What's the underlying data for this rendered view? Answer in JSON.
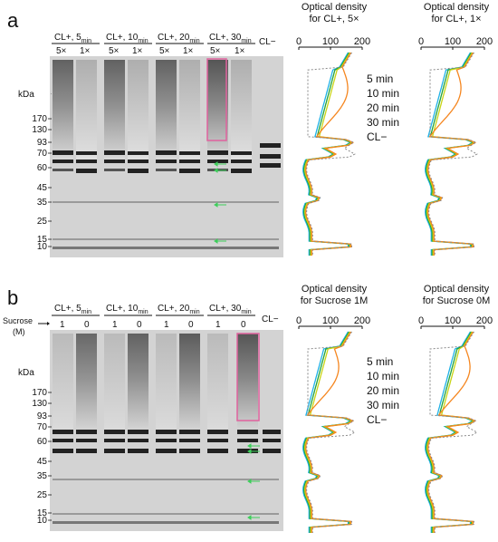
{
  "panels": [
    {
      "label": "a",
      "header_prefix": "",
      "header_prefix_sub": "",
      "groups": [
        {
          "main": "CL+, 5",
          "sub": "min",
          "lanes": [
            "5×",
            "1×"
          ]
        },
        {
          "main": "CL+, 10",
          "sub": "min",
          "lanes": [
            "5×",
            "1×"
          ]
        },
        {
          "main": "CL+, 20",
          "sub": "min",
          "lanes": [
            "5×",
            "1×"
          ]
        },
        {
          "main": "CL+, 30",
          "sub": "min",
          "lanes": [
            "5×",
            "1×"
          ]
        }
      ],
      "control_label": "CL−",
      "kda_label": "kDa",
      "markers": [
        "170",
        "130",
        "93",
        "70",
        "60",
        "45",
        "35",
        "25",
        "15",
        "10"
      ],
      "plots": [
        {
          "title1": "Optical density",
          "title2": "for CL+, 5×",
          "ticks": [
            "0",
            "100",
            "200"
          ]
        },
        {
          "title1": "Optical density",
          "title2": "for CL+, 1×",
          "ticks": [
            "0",
            "100",
            "200"
          ]
        }
      ]
    },
    {
      "label": "b",
      "header_prefix": "Sucrose",
      "header_prefix_sub": "(M)",
      "groups": [
        {
          "main": "CL+, 5",
          "sub": "min",
          "lanes": [
            "1",
            "0"
          ]
        },
        {
          "main": "CL+, 10",
          "sub": "min",
          "lanes": [
            "1",
            "0"
          ]
        },
        {
          "main": "CL+, 20",
          "sub": "min",
          "lanes": [
            "1",
            "0"
          ]
        },
        {
          "main": "CL+, 30",
          "sub": "min",
          "lanes": [
            "1",
            "0"
          ]
        }
      ],
      "control_label": "CL−",
      "kda_label": "kDa",
      "markers": [
        "170",
        "130",
        "93",
        "70",
        "60",
        "45",
        "35",
        "25",
        "15",
        "10"
      ],
      "plots": [
        {
          "title1": "Optical density",
          "title2": "for Sucrose 1M",
          "ticks": [
            "0",
            "100",
            "200"
          ]
        },
        {
          "title1": "Optical density",
          "title2": "for Sucrose 0M",
          "ticks": [
            "0",
            "100",
            "200"
          ]
        }
      ]
    }
  ],
  "legend": [
    {
      "label": "5 min",
      "color": "#1fb1e6"
    },
    {
      "label": "10 min",
      "color": "#22a23a"
    },
    {
      "label": "20 min",
      "color": "#c9d416"
    },
    {
      "label": "30 min",
      "color": "#f5861f"
    },
    {
      "label": "CL−",
      "color": "#8a8a8a"
    }
  ],
  "colors": {
    "box": "#e0629e",
    "arrow": "#3ccf5a"
  }
}
